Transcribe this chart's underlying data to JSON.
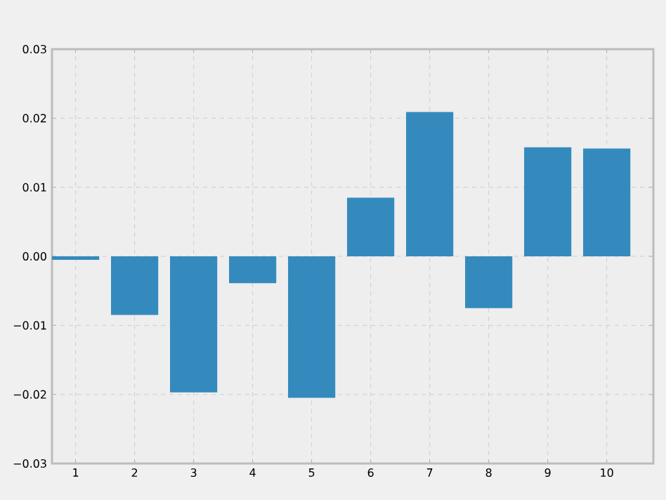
{
  "chart_data": {
    "type": "bar",
    "categories": [
      "1",
      "2",
      "3",
      "4",
      "5",
      "6",
      "7",
      "8",
      "9",
      "10"
    ],
    "values": [
      -0.0005,
      -0.0085,
      -0.0197,
      -0.0039,
      -0.0205,
      0.0085,
      0.0209,
      -0.0075,
      0.0158,
      0.0156
    ],
    "color": "#348abd",
    "ylim": [
      -0.03,
      0.03
    ],
    "yticks": [
      {
        "value": -0.03,
        "label": "−0.03"
      },
      {
        "value": -0.02,
        "label": "−0.02"
      },
      {
        "value": -0.01,
        "label": "−0.01"
      },
      {
        "value": 0,
        "label": "0.00"
      },
      0.01,
      0.02,
      0.03
    ],
    "grid": true
  }
}
